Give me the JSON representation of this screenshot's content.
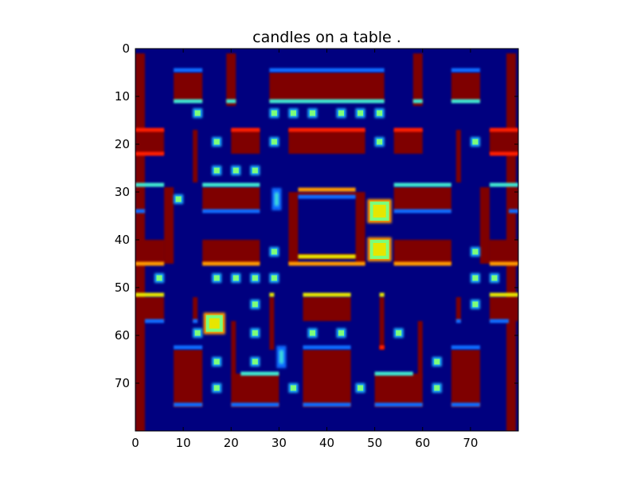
{
  "title": "candles on a table .",
  "colors": {
    "background": "#00007f",
    "wall": "#7f0000",
    "wall_red": "#ff1a00",
    "edge_blue": "#0a6cff",
    "edge_cyan": "#3fe6d0",
    "edge_yellow": "#e6e600",
    "edge_orange": "#ff9a00",
    "pellet": "#7dff7a",
    "pellet_glow": "#1ab0ff",
    "axes": "#000000"
  },
  "axes": {
    "x_range": [
      0,
      80
    ],
    "y_range": [
      0,
      80
    ],
    "x_ticks": [
      0,
      10,
      20,
      30,
      40,
      50,
      60,
      70
    ],
    "y_ticks": [
      0,
      10,
      20,
      30,
      40,
      50,
      60,
      70
    ]
  },
  "maze": {
    "walls": [
      [
        0,
        1,
        2,
        80
      ],
      [
        77.5,
        1,
        2,
        80
      ],
      [
        8,
        5,
        6,
        6
      ],
      [
        19,
        1,
        2,
        11
      ],
      [
        28,
        5,
        24,
        6
      ],
      [
        58,
        1,
        2,
        11
      ],
      [
        66,
        5,
        6,
        6
      ],
      [
        0,
        17,
        6,
        5
      ],
      [
        74,
        17,
        6,
        5
      ],
      [
        12,
        17,
        1,
        11
      ],
      [
        67,
        17,
        1,
        11
      ],
      [
        20,
        17,
        6,
        5
      ],
      [
        32,
        17,
        16,
        5
      ],
      [
        54,
        17,
        6,
        5
      ],
      [
        0,
        29,
        2,
        5
      ],
      [
        6,
        29,
        2,
        16
      ],
      [
        72,
        29,
        2,
        16
      ],
      [
        78,
        29,
        2,
        5
      ],
      [
        14,
        29,
        12,
        5
      ],
      [
        54,
        29,
        12,
        5
      ],
      [
        32,
        30,
        2,
        15
      ],
      [
        46,
        30,
        2,
        15
      ],
      [
        34,
        30,
        12,
        1
      ],
      [
        34,
        43,
        12,
        1
      ],
      [
        0,
        40,
        6,
        5
      ],
      [
        74,
        40,
        6,
        5
      ],
      [
        14,
        40,
        12,
        5
      ],
      [
        54,
        40,
        12,
        5
      ],
      [
        0,
        52,
        6,
        5
      ],
      [
        74,
        52,
        6,
        5
      ],
      [
        12,
        52,
        1,
        5
      ],
      [
        67,
        52,
        1,
        5
      ],
      [
        28,
        52,
        1,
        11
      ],
      [
        51,
        52,
        1,
        11
      ],
      [
        35,
        52,
        10,
        5
      ],
      [
        20,
        57,
        1,
        12
      ],
      [
        59,
        57,
        1,
        12
      ],
      [
        8,
        63,
        6,
        12
      ],
      [
        66,
        63,
        6,
        12
      ],
      [
        20,
        68,
        10,
        7
      ],
      [
        35,
        63,
        10,
        12
      ],
      [
        50,
        68,
        10,
        7
      ]
    ],
    "edges": [
      [
        "blue",
        8,
        4.5,
        6
      ],
      [
        "cyan",
        8,
        11,
        6
      ],
      [
        "blue",
        28,
        4.5,
        24
      ],
      [
        "cyan",
        28,
        11,
        24
      ],
      [
        "blue",
        66,
        4.5,
        6
      ],
      [
        "cyan",
        66,
        11,
        6
      ],
      [
        "cyan",
        19,
        11,
        2
      ],
      [
        "cyan",
        58,
        11,
        2
      ],
      [
        "red",
        0,
        17,
        6
      ],
      [
        "red",
        74,
        17,
        6
      ],
      [
        "red",
        20,
        17,
        6
      ],
      [
        "red",
        32,
        17,
        16
      ],
      [
        "red",
        54,
        17,
        6
      ],
      [
        "red",
        0,
        22,
        6
      ],
      [
        "red",
        74,
        22,
        6
      ],
      [
        "cyan",
        0,
        28.5,
        6
      ],
      [
        "cyan",
        74,
        28.5,
        6
      ],
      [
        "cyan",
        14,
        28.5,
        12
      ],
      [
        "cyan",
        54,
        28.5,
        12
      ],
      [
        "orange",
        34,
        29.5,
        12
      ],
      [
        "blue",
        34,
        31,
        12
      ],
      [
        "blue",
        14,
        34,
        12
      ],
      [
        "blue",
        54,
        34,
        12
      ],
      [
        "blue",
        0,
        34,
        2
      ],
      [
        "blue",
        78,
        34,
        2
      ],
      [
        "yellow",
        34,
        43.5,
        12
      ],
      [
        "orange",
        0,
        45,
        6
      ],
      [
        "orange",
        74,
        45,
        6
      ],
      [
        "orange",
        14,
        45,
        12
      ],
      [
        "orange",
        54,
        45,
        12
      ],
      [
        "orange",
        32,
        45,
        16
      ],
      [
        "yellow",
        0,
        51.5,
        6
      ],
      [
        "yellow",
        74,
        51.5,
        6
      ],
      [
        "yellow",
        35,
        51.5,
        10
      ],
      [
        "yellow",
        28,
        51.5,
        1
      ],
      [
        "yellow",
        51,
        51.5,
        1
      ],
      [
        "blue",
        2,
        57,
        4
      ],
      [
        "blue",
        74,
        57,
        4
      ],
      [
        "blue",
        12,
        57,
        1
      ],
      [
        "blue",
        67,
        57,
        1
      ],
      [
        "red",
        51,
        62.5,
        1
      ],
      [
        "blue",
        8,
        62.5,
        6
      ],
      [
        "blue",
        66,
        62.5,
        6
      ],
      [
        "blue",
        35,
        62.5,
        10
      ],
      [
        "cyan",
        22,
        68,
        8
      ],
      [
        "cyan",
        50,
        68,
        8
      ],
      [
        "blue",
        8,
        74.5,
        6
      ],
      [
        "blue",
        66,
        74.5,
        6
      ],
      [
        "blue",
        20,
        74.5,
        10
      ],
      [
        "blue",
        35,
        74.5,
        10
      ],
      [
        "blue",
        50,
        74.5,
        10
      ]
    ],
    "pellets": [
      [
        13,
        13.5
      ],
      [
        29,
        13.5
      ],
      [
        33,
        13.5
      ],
      [
        37,
        13.5
      ],
      [
        43,
        13.5
      ],
      [
        47,
        13.5
      ],
      [
        51,
        13.5
      ],
      [
        17,
        19.5
      ],
      [
        29,
        19.5
      ],
      [
        51,
        19.5
      ],
      [
        71,
        19.5
      ],
      [
        17,
        25.5
      ],
      [
        21,
        25.5
      ],
      [
        25,
        25.5
      ],
      [
        9,
        31.5
      ],
      [
        29,
        42.5
      ],
      [
        71,
        42.5
      ],
      [
        5,
        48
      ],
      [
        17,
        48
      ],
      [
        21,
        48
      ],
      [
        25,
        48
      ],
      [
        29,
        48
      ],
      [
        71,
        48
      ],
      [
        75,
        48
      ],
      [
        25,
        53.5
      ],
      [
        71,
        53.5
      ],
      [
        13,
        59.5
      ],
      [
        25,
        59.5
      ],
      [
        37,
        59.5
      ],
      [
        43,
        59.5
      ],
      [
        55,
        59.5
      ],
      [
        17,
        65.5
      ],
      [
        25,
        65.5
      ],
      [
        63,
        65.5
      ],
      [
        17,
        71
      ],
      [
        33,
        71
      ],
      [
        47,
        71
      ],
      [
        63,
        71
      ]
    ],
    "big_pellets": [
      [
        51,
        34,
        4
      ],
      [
        51,
        42,
        4
      ],
      [
        16.5,
        57.5,
        3.5
      ]
    ],
    "blobs": [
      [
        29.5,
        31.5
      ],
      [
        30.5,
        64.5
      ]
    ]
  }
}
